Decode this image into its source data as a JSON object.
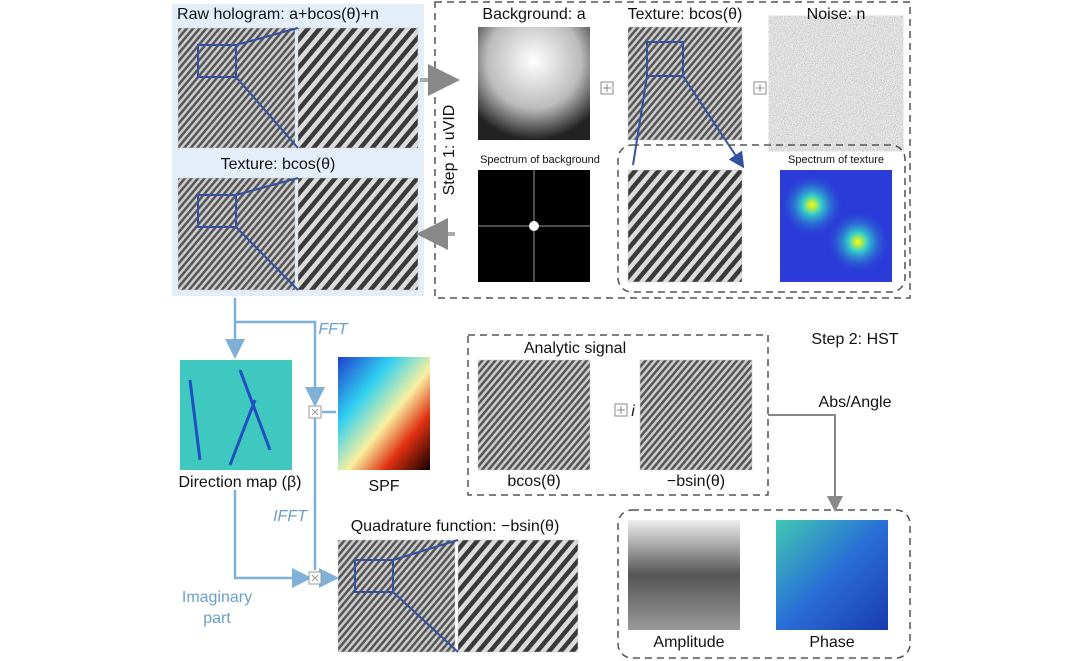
{
  "step1": {
    "raw_title": "Raw hologram: a+bcos(θ)+n",
    "background_title": "Background: a",
    "texture_title": "Texture: bcos(θ)",
    "noise_title": "Noise: n",
    "step_label": "Step 1: uVID",
    "spectrum_background": "Spectrum of background",
    "spectrum_texture": "Spectrum of texture",
    "texture_result": "Texture: bcos(θ)"
  },
  "step2": {
    "fft": "FFT",
    "step_label": "Step 2: HST",
    "analytic_signal": "Analytic signal",
    "imag_unit": "i",
    "real_label": "bcos(θ)",
    "imag_label": "−bsin(θ)",
    "abs_angle": "Abs/Angle",
    "direction_map": "Direction map (β)",
    "spf": "SPF",
    "ifft": "IFFT",
    "quadrature": "Quadrature function: −bsin(θ)",
    "imaginary": "Imaginary",
    "part": "part",
    "amplitude": "Amplitude",
    "phase": "Phase"
  }
}
